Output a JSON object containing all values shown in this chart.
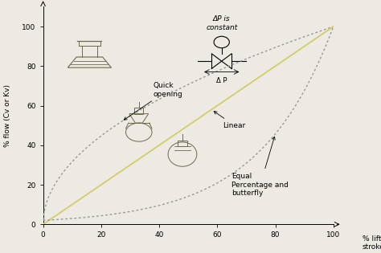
{
  "ylabel": "% flow (Cv or Kv)",
  "xlabel": "% lift or\nstroke",
  "xlim": [
    0,
    100
  ],
  "ylim": [
    0,
    110
  ],
  "xticks": [
    0,
    20,
    40,
    60,
    80,
    100
  ],
  "yticks": [
    0,
    20,
    40,
    60,
    80,
    100
  ],
  "bg_color": "#ede9e3",
  "quick_opening_color": "#999999",
  "linear_color": "#d4cc6a",
  "equal_percentage_color": "#999999",
  "annotation_quick": "Quick\nopening",
  "annotation_linear": "Linear",
  "annotation_equal": "Equal\nPercentage and\nbutterfly",
  "delta_p_label": "ΔP is\nconstant",
  "valve_color": "#6b6b4a"
}
